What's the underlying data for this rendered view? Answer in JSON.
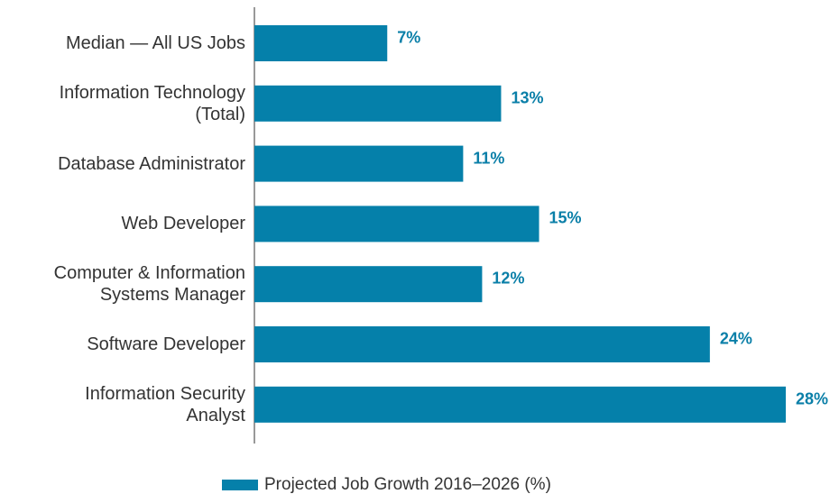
{
  "chart_data": {
    "type": "bar",
    "orientation": "horizontal",
    "categories": [
      "Median — All US Jobs",
      "Information Technology\n(Total)",
      "Database Administrator",
      "Web Developer",
      "Computer & Information\nSystems Manager",
      "Software Developer",
      "Information Security\nAnalyst"
    ],
    "series": [
      {
        "name": "Projected Job Growth 2016–2026 (%)",
        "color": "#0580aa",
        "values": [
          7,
          13,
          11,
          15,
          12,
          24,
          28
        ],
        "value_labels": [
          "7%",
          "13%",
          "11%",
          "15%",
          "12%",
          "24%",
          "28%"
        ]
      }
    ],
    "xlim": [
      0,
      28
    ],
    "legend": "bottom"
  }
}
